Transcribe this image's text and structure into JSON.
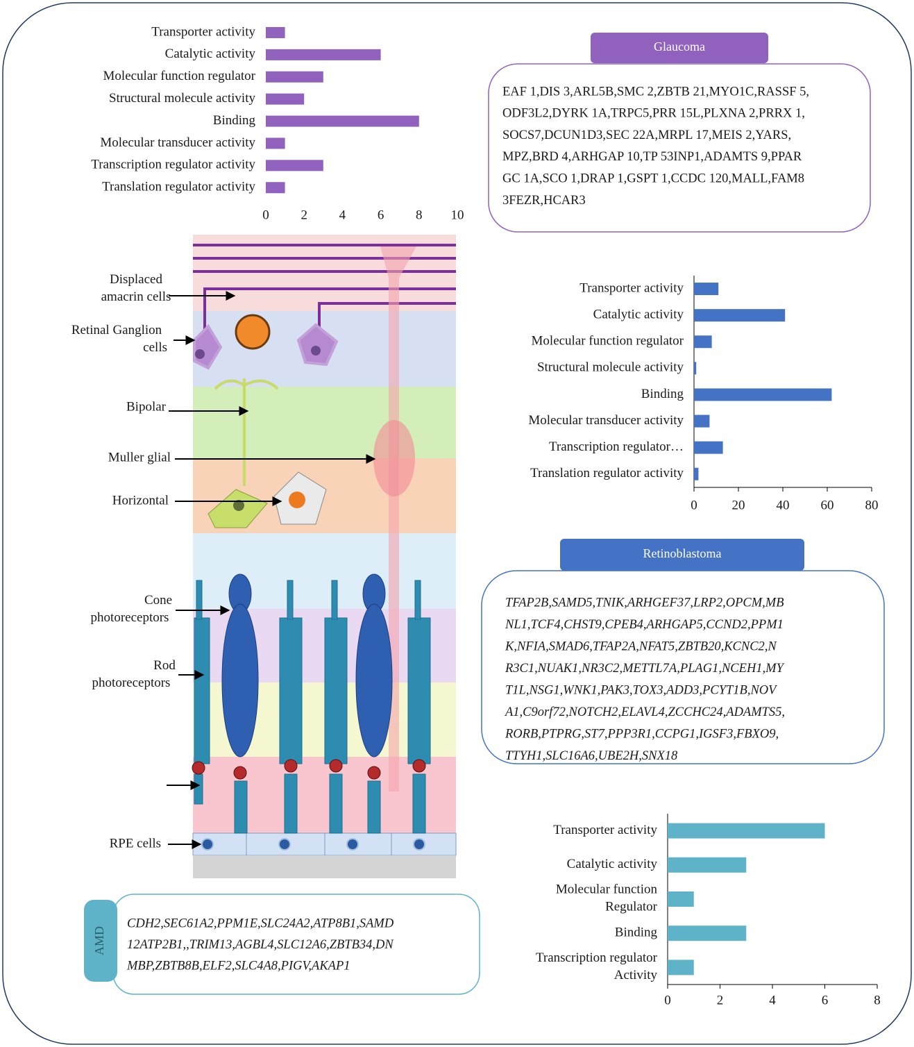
{
  "chart_data": [
    {
      "type": "barh",
      "color": "#9061bd",
      "categories": [
        "Transporter activity",
        "Catalytic activity",
        "Molecular function regulator",
        "Structural molecule activity",
        "Binding",
        "Molecular transducer activity",
        "Transcription regulator activity",
        "Translation regulator activity"
      ],
      "values": [
        1,
        6,
        3,
        2,
        8,
        1,
        3,
        1
      ],
      "xlim": [
        0,
        10
      ],
      "xticks": [
        0,
        2,
        4,
        6,
        8,
        10
      ]
    },
    {
      "type": "barh",
      "color": "#4472c4",
      "categories": [
        "Transporter activity",
        "Catalytic activity",
        "Molecular function regulator",
        "Structural molecule activity",
        "Binding",
        "Molecular transducer activity",
        "Transcription regulator…",
        "Translation regulator activity"
      ],
      "values": [
        11,
        41,
        8,
        1,
        62,
        7,
        13,
        2
      ],
      "xlim": [
        0,
        80
      ],
      "xticks": [
        0,
        20,
        40,
        60,
        80
      ]
    },
    {
      "type": "barh",
      "color": "#5fb3c8",
      "categories": [
        "Transporter activity",
        "Catalytic activity",
        "Molecular function\nRegulator",
        "Binding",
        "Transcription regulator\nActivity"
      ],
      "values": [
        6,
        3,
        1,
        3,
        1
      ],
      "xlim": [
        0,
        8
      ],
      "xticks": [
        0,
        2,
        4,
        6,
        8
      ]
    }
  ],
  "panels": [
    {
      "title": "Glaucoma",
      "lines": [
        "EAF 1,DIS 3,ARL5B,SMC 2,ZBTB 21,MYO1C,RASSF 5,",
        "ODF3L2,DYRK 1A,TRPC5,PRR 15L,PLXNA 2,PRRX 1,",
        "SOCS7,DCUN1D3,SEC 22A,MRPL 17,MEIS 2,YARS,",
        "MPZ,BRD 4,ARHGAP 10,TP 53INP1,ADAMTS 9,PPAR",
        "GC 1A,SCO 1,DRAP 1,GSPT 1,CCDC 120,MALL,FAM8",
        "3FEZR,HCAR3"
      ]
    },
    {
      "title": "Retinoblastoma",
      "lines": [
        "TFAP2B,SAMD5,TNIK,ARHGEF37,LRP2,OPCM,MB",
        "NL1,TCF4,CHST9,CPEB4,ARHGAP5,CCND2,PPM1",
        "K,NFIA,SMAD6,TFAP2A,NFAT5,ZBTB20,KCNC2,N",
        "R3C1,NUAK1,NR3C2,METTL7A,PLAG1,NCEH1,MY",
        "T1L,NSG1,WNK1,PAK3,TOX3,ADD3,PCYT1B,NOV",
        "A1,C9orf72,NOTCH2,ELAVL4,ZCCHC24,ADAMTS5,",
        "RORB,PTPRG,ST7,PPP3R1,CCPG1,IGSF3,FBXO9,",
        "TTYH1,SLC16A6,UBE2H,SNX18"
      ]
    },
    {
      "title": "AMD",
      "lines": [
        "CDH2,SEC61A2,PPM1E,SLC24A2,ATP8B1,SAMD",
        "12ATP2B1,,TRIM13,AGBL4,SLC12A6,ZBTB34,DN",
        "MBP,ZBTB8B,ELF2,SLC4A8,PIGV,AKAP1"
      ]
    }
  ],
  "retina_labels": [
    [
      "Displaced",
      "amacrin cells"
    ],
    [
      "Retinal Ganglion",
      "cells"
    ],
    [
      "Bipolar"
    ],
    [
      "Muller glial"
    ],
    [
      "Horizontal"
    ],
    [
      "Cone",
      "photoreceptors"
    ],
    [
      "Rod",
      "photoreceptors"
    ],
    [
      "RPE cells"
    ]
  ]
}
